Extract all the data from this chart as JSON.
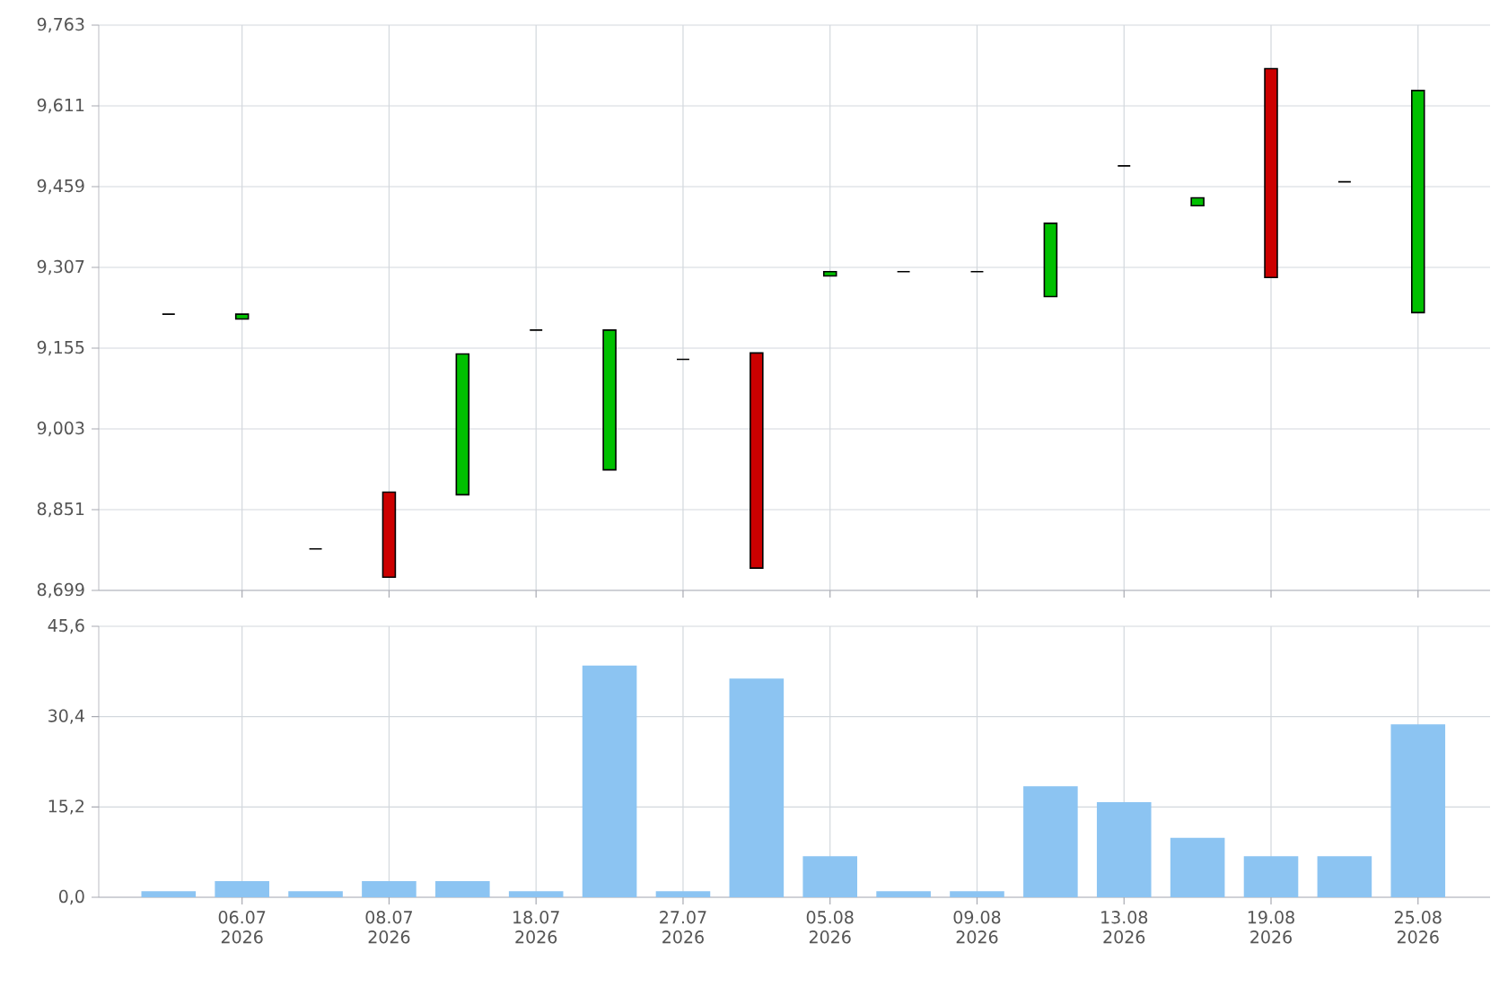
{
  "chart_data": [
    {
      "type": "candlestick",
      "categories": [
        null,
        null,
        null,
        null,
        null,
        null,
        null,
        null,
        null,
        null,
        null,
        null,
        null,
        null,
        null,
        null,
        null,
        null
      ],
      "ohlc": [
        [
          9219,
          9219,
          9219,
          9219
        ],
        [
          9210,
          9219,
          9210,
          9219
        ],
        [
          8777,
          8777,
          8777,
          8777
        ],
        [
          8884,
          8884,
          8724,
          8724
        ],
        [
          8879,
          9144,
          8879,
          9144
        ],
        [
          9189,
          9189,
          9189,
          9189
        ],
        [
          8926,
          9189,
          8926,
          9189
        ],
        [
          9134,
          9134,
          9134,
          9134
        ],
        [
          9146,
          9146,
          8741,
          8741
        ],
        [
          9291,
          9299,
          9291,
          9299
        ],
        [
          9299,
          9299,
          9299,
          9299
        ],
        [
          9299,
          9299,
          9299,
          9299
        ],
        [
          9252,
          9390,
          9252,
          9390
        ],
        [
          9498,
          9498,
          9498,
          9498
        ],
        [
          9423,
          9438,
          9423,
          9438
        ],
        [
          9681,
          9681,
          9288,
          9288
        ],
        [
          9468,
          9468,
          9468,
          9468
        ],
        [
          9222,
          9640,
          9222,
          9640
        ]
      ],
      "colors": [
        "#000000",
        "#00c000",
        "#000000",
        "#cc0000",
        "#00c000",
        "#000000",
        "#00c000",
        "#000000",
        "#cc0000",
        "#00c000",
        "#000000",
        "#000000",
        "#00c000",
        "#000000",
        "#00c000",
        "#cc0000",
        "#000000",
        "#00c000"
      ],
      "ylim": [
        8699,
        9763
      ],
      "yticks": [
        {
          "value": 8699,
          "label": "8,699"
        },
        {
          "value": 8851,
          "label": "8,851"
        },
        {
          "value": 9003,
          "label": "9,003"
        },
        {
          "value": 9155,
          "label": "9,155"
        },
        {
          "value": 9307,
          "label": "9,307"
        },
        {
          "value": 9459,
          "label": "9,459"
        },
        {
          "value": 9611,
          "label": "9,611"
        },
        {
          "value": 9763,
          "label": "9,763"
        }
      ],
      "grid": true,
      "tick_labels": "y"
    },
    {
      "type": "bar",
      "categories": [
        null,
        "06.07 2026",
        null,
        "08.07 2026",
        null,
        "18.07 2026",
        null,
        "27.07 2026",
        null,
        "05.08 2026",
        null,
        "09.08 2026",
        null,
        "13.08 2026",
        null,
        "19.08 2026",
        null,
        "25.08 2026"
      ],
      "values": [
        1.0,
        2.7,
        1.0,
        2.7,
        2.7,
        1.0,
        39.0,
        1.0,
        36.8,
        6.9,
        1.0,
        1.0,
        18.7,
        16.0,
        10.0,
        6.9,
        6.9,
        29.1
      ],
      "color": "#8cc4f2",
      "ylim": [
        0,
        45.6
      ],
      "yticks": [
        {
          "value": 0,
          "label": "0,0"
        },
        {
          "value": 15.2,
          "label": "15,2"
        },
        {
          "value": 30.4,
          "label": "30,4"
        },
        {
          "value": 45.6,
          "label": "45,6"
        }
      ],
      "grid": true
    }
  ]
}
